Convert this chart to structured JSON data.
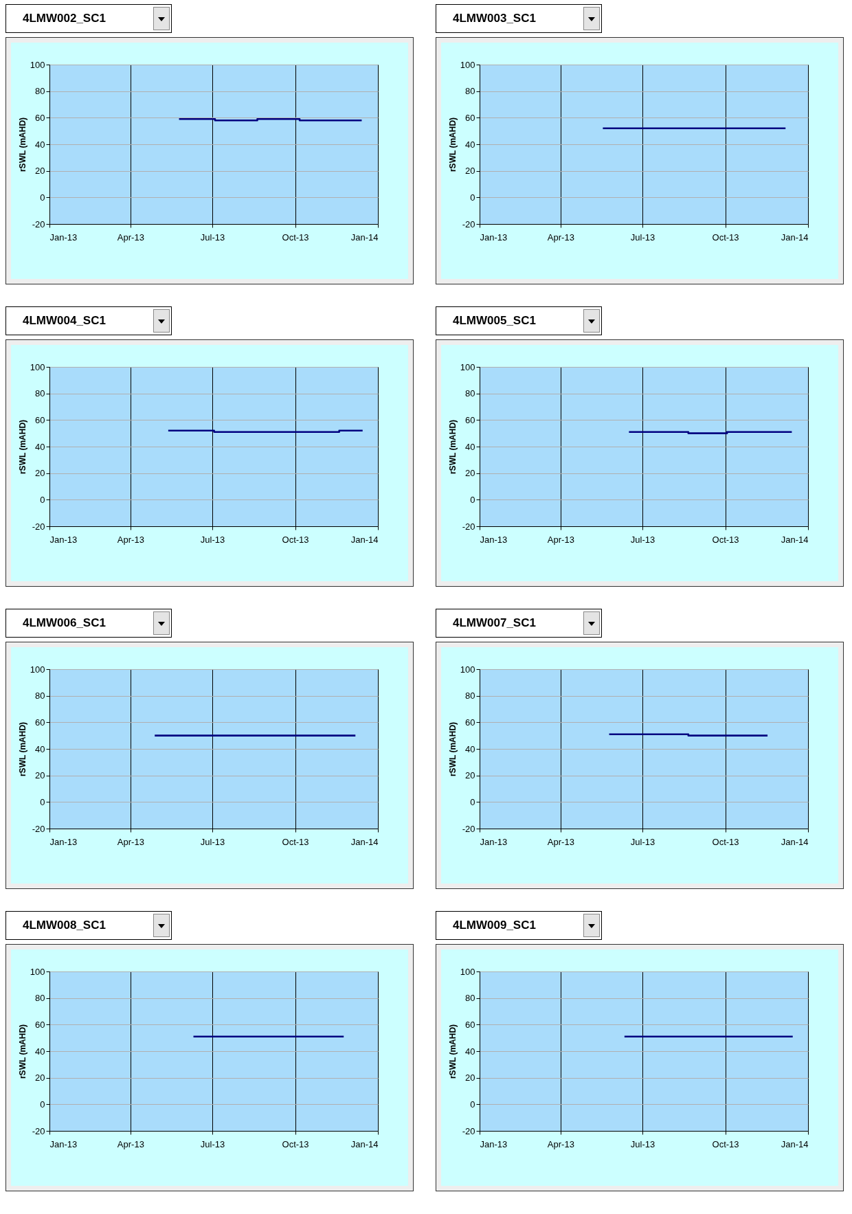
{
  "chart_data": [
    {
      "type": "step",
      "title": "4LMW002_SC1",
      "ylabel": "rSWL (mAHD)",
      "xlim": [
        "2013-01-01",
        "2014-01-01"
      ],
      "xticks": [
        {
          "value": "2013-01-01",
          "label": "Jan-13"
        },
        {
          "value": "2013-04-01",
          "label": "Apr-13"
        },
        {
          "value": "2013-07-01",
          "label": "Jul-13"
        },
        {
          "value": "2013-10-01",
          "label": "Oct-13"
        },
        {
          "value": "2014-01-01",
          "label": "Jan-14"
        }
      ],
      "ylim": [
        -20,
        100
      ],
      "yticks": [
        -20,
        0,
        20,
        40,
        60,
        80,
        100
      ],
      "grid": true,
      "series": [
        {
          "color": "#000080",
          "x": [
            "2013-05-25",
            "2013-07-04",
            "2013-08-20",
            "2013-10-06",
            "2013-12-14"
          ],
          "values": [
            59,
            58,
            59,
            58,
            58
          ]
        }
      ]
    },
    {
      "type": "step",
      "title": "4LMW003_SC1",
      "ylabel": "rSWL (mAHD)",
      "xlim": [
        "2013-01-01",
        "2014-01-01"
      ],
      "xticks": [
        {
          "value": "2013-01-01",
          "label": "Jan-13"
        },
        {
          "value": "2013-04-01",
          "label": "Apr-13"
        },
        {
          "value": "2013-07-01",
          "label": "Jul-13"
        },
        {
          "value": "2013-10-01",
          "label": "Oct-13"
        },
        {
          "value": "2014-01-01",
          "label": "Jan-14"
        }
      ],
      "ylim": [
        -20,
        100
      ],
      "yticks": [
        -20,
        0,
        20,
        40,
        60,
        80,
        100
      ],
      "grid": true,
      "series": [
        {
          "color": "#000080",
          "x": [
            "2013-05-18",
            "2013-12-07"
          ],
          "values": [
            52,
            52
          ]
        }
      ]
    },
    {
      "type": "step",
      "title": "4LMW004_SC1",
      "ylabel": "rSWL (mAHD)",
      "xlim": [
        "2013-01-01",
        "2014-01-01"
      ],
      "xticks": [
        {
          "value": "2013-01-01",
          "label": "Jan-13"
        },
        {
          "value": "2013-04-01",
          "label": "Apr-13"
        },
        {
          "value": "2013-07-01",
          "label": "Jul-13"
        },
        {
          "value": "2013-10-01",
          "label": "Oct-13"
        },
        {
          "value": "2014-01-01",
          "label": "Jan-14"
        }
      ],
      "ylim": [
        -20,
        100
      ],
      "yticks": [
        -20,
        0,
        20,
        40,
        60,
        80,
        100
      ],
      "grid": true,
      "series": [
        {
          "color": "#000080",
          "x": [
            "2013-05-13",
            "2013-07-03",
            "2013-11-19",
            "2013-12-15"
          ],
          "values": [
            52,
            51,
            52,
            52
          ]
        }
      ]
    },
    {
      "type": "step",
      "title": "4LMW005_SC1",
      "ylabel": "rSWL (mAHD)",
      "xlim": [
        "2013-01-01",
        "2014-01-01"
      ],
      "xticks": [
        {
          "value": "2013-01-01",
          "label": "Jan-13"
        },
        {
          "value": "2013-04-01",
          "label": "Apr-13"
        },
        {
          "value": "2013-07-01",
          "label": "Jul-13"
        },
        {
          "value": "2013-10-01",
          "label": "Oct-13"
        },
        {
          "value": "2014-01-01",
          "label": "Jan-14"
        }
      ],
      "ylim": [
        -20,
        100
      ],
      "yticks": [
        -20,
        0,
        20,
        40,
        60,
        80,
        100
      ],
      "grid": true,
      "series": [
        {
          "color": "#000080",
          "x": [
            "2013-06-16",
            "2013-08-21",
            "2013-10-03",
            "2013-12-14"
          ],
          "values": [
            51,
            50,
            51,
            51
          ]
        }
      ]
    },
    {
      "type": "step",
      "title": "4LMW006_SC1",
      "ylabel": "rSWL (mAHD)",
      "xlim": [
        "2013-01-01",
        "2014-01-01"
      ],
      "xticks": [
        {
          "value": "2013-01-01",
          "label": "Jan-13"
        },
        {
          "value": "2013-04-01",
          "label": "Apr-13"
        },
        {
          "value": "2013-07-01",
          "label": "Jul-13"
        },
        {
          "value": "2013-10-01",
          "label": "Oct-13"
        },
        {
          "value": "2014-01-01",
          "label": "Jan-14"
        }
      ],
      "ylim": [
        -20,
        100
      ],
      "yticks": [
        -20,
        0,
        20,
        40,
        60,
        80,
        100
      ],
      "grid": true,
      "series": [
        {
          "color": "#000080",
          "x": [
            "2013-04-28",
            "2013-12-07"
          ],
          "values": [
            50,
            50
          ]
        }
      ]
    },
    {
      "type": "step",
      "title": "4LMW007_SC1",
      "ylabel": "rSWL (mAHD)",
      "xlim": [
        "2013-01-01",
        "2014-01-01"
      ],
      "xticks": [
        {
          "value": "2013-01-01",
          "label": "Jan-13"
        },
        {
          "value": "2013-04-01",
          "label": "Apr-13"
        },
        {
          "value": "2013-07-01",
          "label": "Jul-13"
        },
        {
          "value": "2013-10-01",
          "label": "Oct-13"
        },
        {
          "value": "2014-01-01",
          "label": "Jan-14"
        }
      ],
      "ylim": [
        -20,
        100
      ],
      "yticks": [
        -20,
        0,
        20,
        40,
        60,
        80,
        100
      ],
      "grid": true,
      "series": [
        {
          "color": "#000080",
          "x": [
            "2013-05-25",
            "2013-08-21",
            "2013-11-17"
          ],
          "values": [
            51,
            50,
            50
          ]
        }
      ]
    },
    {
      "type": "step",
      "title": "4LMW008_SC1",
      "ylabel": "rSWL (mAHD)",
      "xlim": [
        "2013-01-01",
        "2014-01-01"
      ],
      "xticks": [
        {
          "value": "2013-01-01",
          "label": "Jan-13"
        },
        {
          "value": "2013-04-01",
          "label": "Apr-13"
        },
        {
          "value": "2013-07-01",
          "label": "Jul-13"
        },
        {
          "value": "2013-10-01",
          "label": "Oct-13"
        },
        {
          "value": "2014-01-01",
          "label": "Jan-14"
        }
      ],
      "ylim": [
        -20,
        100
      ],
      "yticks": [
        -20,
        0,
        20,
        40,
        60,
        80,
        100
      ],
      "grid": true,
      "series": [
        {
          "color": "#000080",
          "x": [
            "2013-06-10",
            "2013-11-24"
          ],
          "values": [
            51,
            51
          ]
        }
      ]
    },
    {
      "type": "step",
      "title": "4LMW009_SC1",
      "ylabel": "rSWL (mAHD)",
      "xlim": [
        "2013-01-01",
        "2014-01-01"
      ],
      "xticks": [
        {
          "value": "2013-01-01",
          "label": "Jan-13"
        },
        {
          "value": "2013-04-01",
          "label": "Apr-13"
        },
        {
          "value": "2013-07-01",
          "label": "Jul-13"
        },
        {
          "value": "2013-10-01",
          "label": "Oct-13"
        },
        {
          "value": "2014-01-01",
          "label": "Jan-14"
        }
      ],
      "ylim": [
        -20,
        100
      ],
      "yticks": [
        -20,
        0,
        20,
        40,
        60,
        80,
        100
      ],
      "grid": true,
      "series": [
        {
          "color": "#000080",
          "x": [
            "2013-06-11",
            "2013-12-15"
          ],
          "values": [
            51,
            51
          ]
        }
      ]
    }
  ]
}
